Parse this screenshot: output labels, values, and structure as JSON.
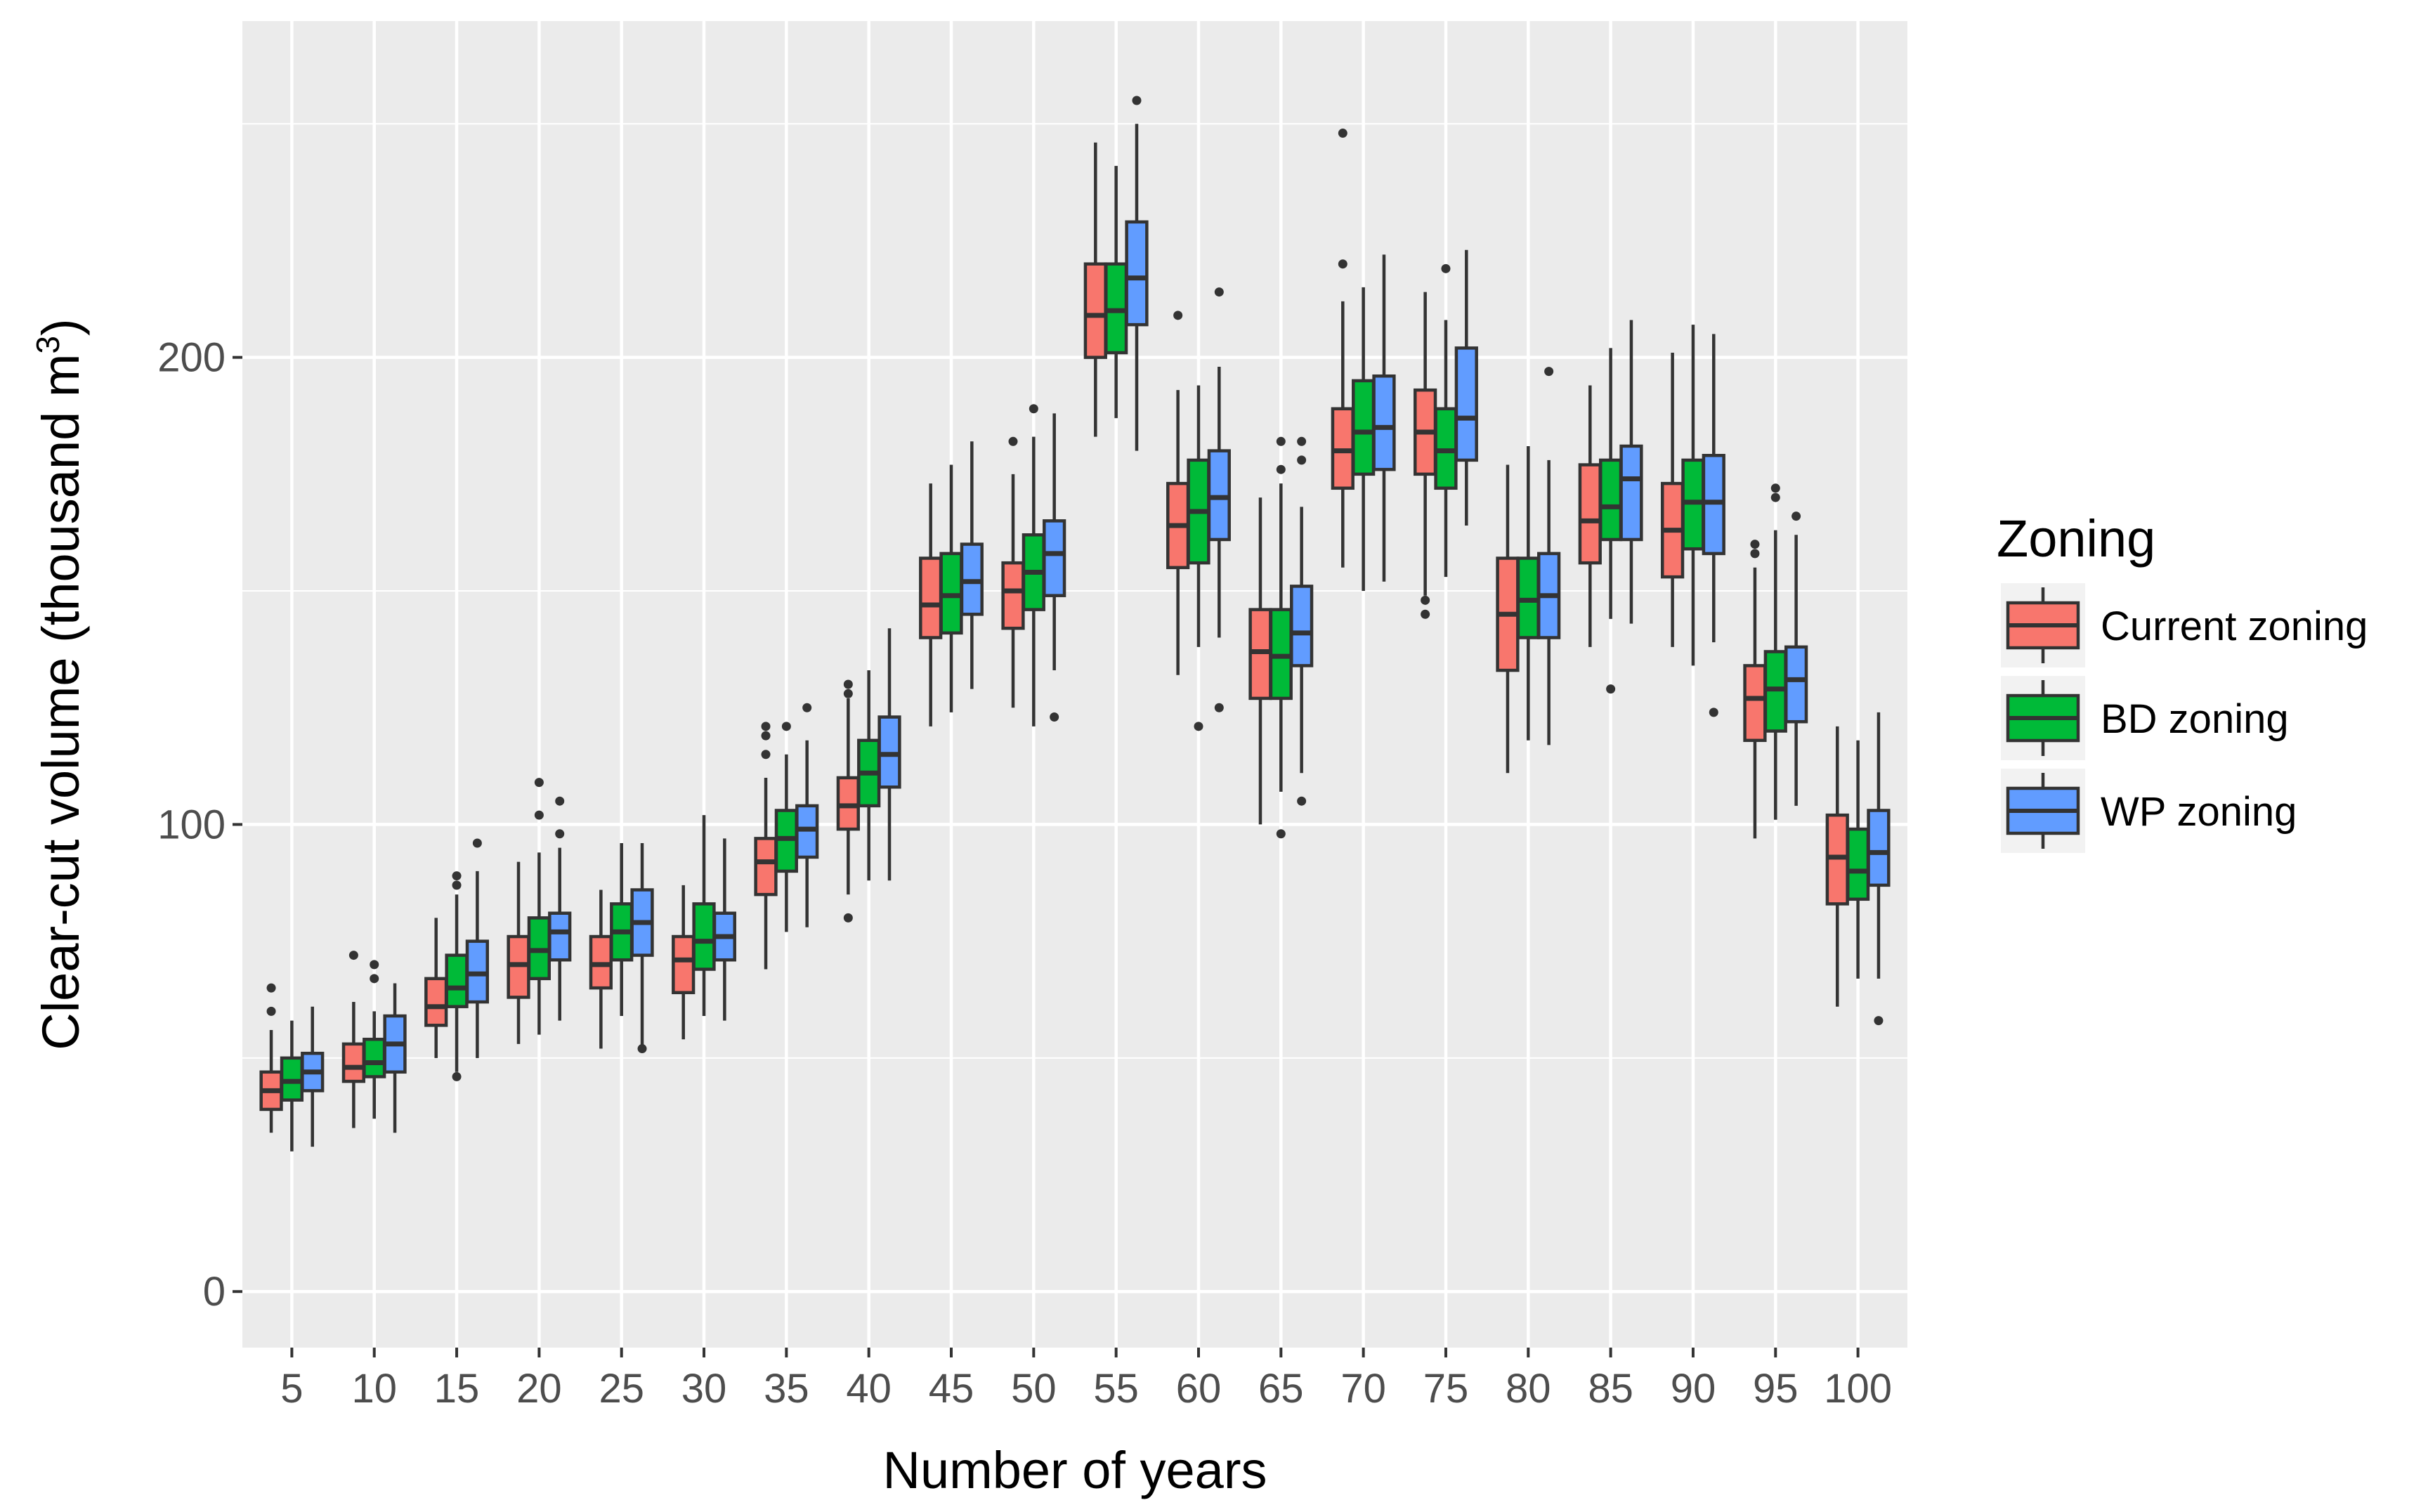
{
  "chart_data": {
    "type": "boxplot",
    "title": "",
    "xlabel": "Number of years",
    "ylabel": "Clear-cut volume (thousand m",
    "ylabel_superscript": "3",
    "ylabel_suffix": ")",
    "ylim": [
      -12,
      272
    ],
    "yticks": [
      0,
      100,
      200
    ],
    "y_tick_labels": [
      "0",
      "100",
      "200"
    ],
    "categories": [
      "5",
      "10",
      "15",
      "20",
      "25",
      "30",
      "35",
      "40",
      "45",
      "50",
      "55",
      "60",
      "65",
      "70",
      "75",
      "80",
      "85",
      "90",
      "95",
      "100"
    ],
    "legend": {
      "title": "Zoning",
      "position": "right",
      "entries": [
        "Current zoning",
        "BD zoning",
        "WP zoning"
      ]
    },
    "colors": {
      "panel_background": "#EBEBEB",
      "grid": "#FFFFFF",
      "box_outline": "#333333",
      "Current zoning": "#F8766D",
      "BD zoning": "#00BA38",
      "WP zoning": "#619CFF"
    },
    "series": [
      {
        "name": "Current zoning",
        "boxes": [
          {
            "min": 34,
            "q1": 39,
            "median": 43,
            "q3": 47,
            "max": 56,
            "outliers": [
              60,
              65
            ]
          },
          {
            "min": 35,
            "q1": 45,
            "median": 48,
            "q3": 53,
            "max": 62,
            "outliers": [
              72
            ]
          },
          {
            "min": 50,
            "q1": 57,
            "median": 61,
            "q3": 67,
            "max": 80,
            "outliers": []
          },
          {
            "min": 53,
            "q1": 63,
            "median": 70,
            "q3": 76,
            "max": 92,
            "outliers": []
          },
          {
            "min": 52,
            "q1": 65,
            "median": 70,
            "q3": 76,
            "max": 86,
            "outliers": []
          },
          {
            "min": 54,
            "q1": 64,
            "median": 71,
            "q3": 76,
            "max": 87,
            "outliers": []
          },
          {
            "min": 69,
            "q1": 85,
            "median": 92,
            "q3": 97,
            "max": 110,
            "outliers": [
              115,
              119,
              121
            ]
          },
          {
            "min": 85,
            "q1": 99,
            "median": 104,
            "q3": 110,
            "max": 127,
            "outliers": [
              80,
              128,
              130
            ]
          },
          {
            "min": 121,
            "q1": 140,
            "median": 147,
            "q3": 157,
            "max": 173,
            "outliers": []
          },
          {
            "min": 125,
            "q1": 142,
            "median": 150,
            "q3": 156,
            "max": 175,
            "outliers": [
              182
            ]
          },
          {
            "min": 183,
            "q1": 200,
            "median": 209,
            "q3": 220,
            "max": 246,
            "outliers": []
          },
          {
            "min": 132,
            "q1": 155,
            "median": 164,
            "q3": 173,
            "max": 193,
            "outliers": [
              209
            ]
          },
          {
            "min": 100,
            "q1": 127,
            "median": 137,
            "q3": 146,
            "max": 170,
            "outliers": []
          },
          {
            "min": 155,
            "q1": 172,
            "median": 180,
            "q3": 189,
            "max": 212,
            "outliers": [
              220,
              248
            ]
          },
          {
            "min": 149,
            "q1": 175,
            "median": 184,
            "q3": 193,
            "max": 214,
            "outliers": [
              145,
              148
            ]
          },
          {
            "min": 111,
            "q1": 133,
            "median": 145,
            "q3": 157,
            "max": 177,
            "outliers": []
          },
          {
            "min": 138,
            "q1": 156,
            "median": 165,
            "q3": 177,
            "max": 194,
            "outliers": []
          },
          {
            "min": 138,
            "q1": 153,
            "median": 163,
            "q3": 173,
            "max": 201,
            "outliers": []
          },
          {
            "min": 97,
            "q1": 118,
            "median": 127,
            "q3": 134,
            "max": 155,
            "outliers": [
              158,
              160
            ]
          },
          {
            "min": 61,
            "q1": 83,
            "median": 93,
            "q3": 102,
            "max": 121,
            "outliers": []
          }
        ]
      },
      {
        "name": "BD zoning",
        "boxes": [
          {
            "min": 30,
            "q1": 41,
            "median": 45,
            "q3": 50,
            "max": 58,
            "outliers": []
          },
          {
            "min": 37,
            "q1": 46,
            "median": 49,
            "q3": 54,
            "max": 60,
            "outliers": [
              67,
              70
            ]
          },
          {
            "min": 47,
            "q1": 61,
            "median": 65,
            "q3": 72,
            "max": 85,
            "outliers": [
              46,
              87,
              89
            ]
          },
          {
            "min": 55,
            "q1": 67,
            "median": 73,
            "q3": 80,
            "max": 94,
            "outliers": [
              102,
              109
            ]
          },
          {
            "min": 59,
            "q1": 71,
            "median": 77,
            "q3": 83,
            "max": 96,
            "outliers": []
          },
          {
            "min": 59,
            "q1": 69,
            "median": 75,
            "q3": 83,
            "max": 102,
            "outliers": []
          },
          {
            "min": 77,
            "q1": 90,
            "median": 97,
            "q3": 103,
            "max": 115,
            "outliers": [
              121
            ]
          },
          {
            "min": 88,
            "q1": 104,
            "median": 111,
            "q3": 118,
            "max": 133,
            "outliers": []
          },
          {
            "min": 124,
            "q1": 141,
            "median": 149,
            "q3": 158,
            "max": 177,
            "outliers": []
          },
          {
            "min": 121,
            "q1": 146,
            "median": 154,
            "q3": 162,
            "max": 183,
            "outliers": [
              189
            ]
          },
          {
            "min": 187,
            "q1": 201,
            "median": 210,
            "q3": 220,
            "max": 241,
            "outliers": []
          },
          {
            "min": 138,
            "q1": 156,
            "median": 167,
            "q3": 178,
            "max": 194,
            "outliers": [
              121
            ]
          },
          {
            "min": 107,
            "q1": 127,
            "median": 136,
            "q3": 146,
            "max": 173,
            "outliers": [
              98,
              176,
              182
            ]
          },
          {
            "min": 150,
            "q1": 175,
            "median": 184,
            "q3": 195,
            "max": 215,
            "outliers": []
          },
          {
            "min": 153,
            "q1": 172,
            "median": 180,
            "q3": 189,
            "max": 208,
            "outliers": [
              219
            ]
          },
          {
            "min": 118,
            "q1": 140,
            "median": 148,
            "q3": 157,
            "max": 181,
            "outliers": []
          },
          {
            "min": 144,
            "q1": 161,
            "median": 168,
            "q3": 178,
            "max": 202,
            "outliers": [
              129
            ]
          },
          {
            "min": 134,
            "q1": 159,
            "median": 169,
            "q3": 178,
            "max": 207,
            "outliers": []
          },
          {
            "min": 101,
            "q1": 120,
            "median": 129,
            "q3": 137,
            "max": 163,
            "outliers": [
              170,
              172
            ]
          },
          {
            "min": 67,
            "q1": 84,
            "median": 90,
            "q3": 99,
            "max": 118,
            "outliers": []
          }
        ]
      },
      {
        "name": "WP zoning",
        "boxes": [
          {
            "min": 31,
            "q1": 43,
            "median": 47,
            "q3": 51,
            "max": 61,
            "outliers": []
          },
          {
            "min": 34,
            "q1": 47,
            "median": 53,
            "q3": 59,
            "max": 66,
            "outliers": []
          },
          {
            "min": 50,
            "q1": 62,
            "median": 68,
            "q3": 75,
            "max": 90,
            "outliers": [
              96
            ]
          },
          {
            "min": 58,
            "q1": 71,
            "median": 77,
            "q3": 81,
            "max": 95,
            "outliers": [
              98,
              105
            ]
          },
          {
            "min": 52,
            "q1": 72,
            "median": 79,
            "q3": 86,
            "max": 96,
            "outliers": [
              52
            ]
          },
          {
            "min": 58,
            "q1": 71,
            "median": 76,
            "q3": 81,
            "max": 97,
            "outliers": []
          },
          {
            "min": 78,
            "q1": 93,
            "median": 99,
            "q3": 104,
            "max": 118,
            "outliers": [
              125
            ]
          },
          {
            "min": 88,
            "q1": 108,
            "median": 115,
            "q3": 123,
            "max": 142,
            "outliers": []
          },
          {
            "min": 129,
            "q1": 145,
            "median": 152,
            "q3": 160,
            "max": 182,
            "outliers": []
          },
          {
            "min": 133,
            "q1": 149,
            "median": 158,
            "q3": 165,
            "max": 188,
            "outliers": [
              123
            ]
          },
          {
            "min": 180,
            "q1": 207,
            "median": 217,
            "q3": 229,
            "max": 250,
            "outliers": [
              255
            ]
          },
          {
            "min": 140,
            "q1": 161,
            "median": 170,
            "q3": 180,
            "max": 198,
            "outliers": [
              125,
              214
            ]
          },
          {
            "min": 111,
            "q1": 134,
            "median": 141,
            "q3": 151,
            "max": 168,
            "outliers": [
              105,
              178,
              182
            ]
          },
          {
            "min": 152,
            "q1": 176,
            "median": 185,
            "q3": 196,
            "max": 222,
            "outliers": []
          },
          {
            "min": 164,
            "q1": 178,
            "median": 187,
            "q3": 202,
            "max": 223,
            "outliers": []
          },
          {
            "min": 117,
            "q1": 140,
            "median": 149,
            "q3": 158,
            "max": 178,
            "outliers": [
              197
            ]
          },
          {
            "min": 143,
            "q1": 161,
            "median": 174,
            "q3": 181,
            "max": 208,
            "outliers": []
          },
          {
            "min": 139,
            "q1": 158,
            "median": 169,
            "q3": 179,
            "max": 205,
            "outliers": [
              124
            ]
          },
          {
            "min": 104,
            "q1": 122,
            "median": 131,
            "q3": 138,
            "max": 162,
            "outliers": [
              166
            ]
          },
          {
            "min": 67,
            "q1": 87,
            "median": 94,
            "q3": 103,
            "max": 124,
            "outliers": [
              58
            ]
          }
        ]
      }
    ]
  }
}
